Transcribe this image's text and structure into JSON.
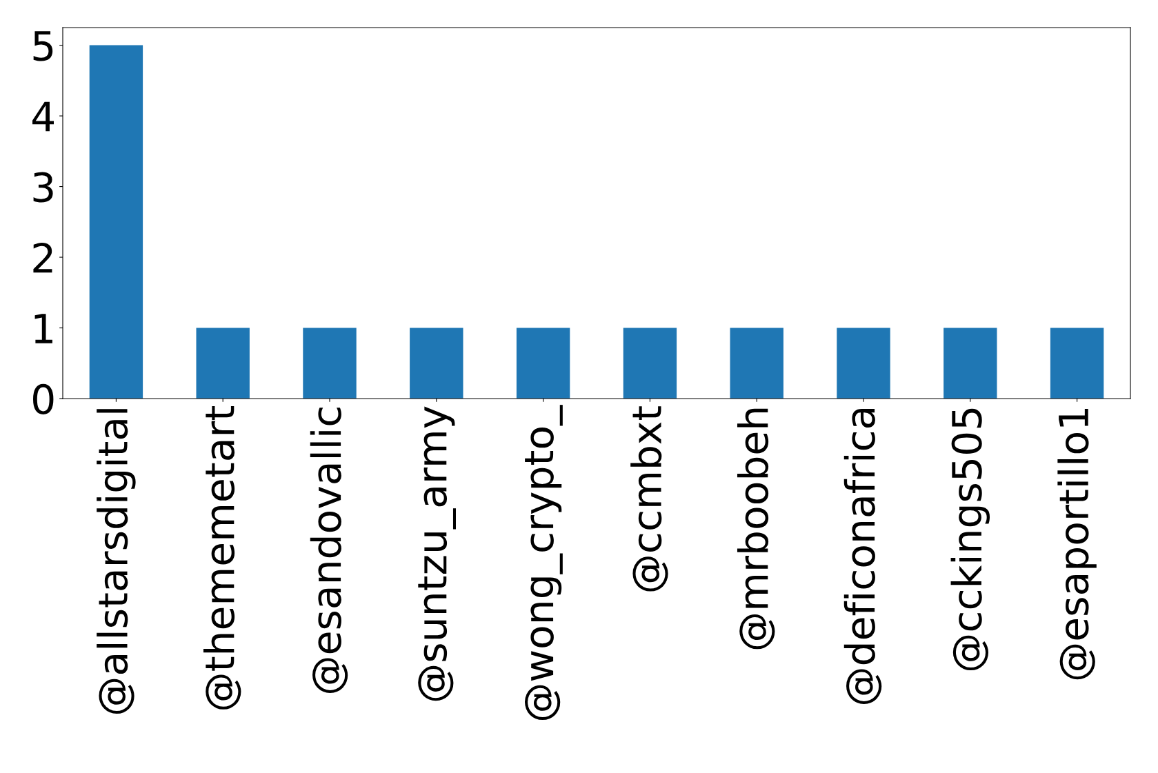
{
  "chart_data": {
    "type": "bar",
    "categories": [
      "@allstarsdigital",
      "@thememetart",
      "@esandovallic",
      "@suntzu_army",
      "@wong_crypto_",
      "@ccmbxt",
      "@mrboobeh",
      "@deficonafrica",
      "@cckings505",
      "@esaportillo1"
    ],
    "values": [
      5,
      1,
      1,
      1,
      1,
      1,
      1,
      1,
      1,
      1
    ],
    "color": "#1f77b4",
    "ylim": [
      0,
      5.25
    ],
    "yticks": [
      0,
      1,
      2,
      3,
      4,
      5
    ],
    "grid": false,
    "legend": false
  }
}
